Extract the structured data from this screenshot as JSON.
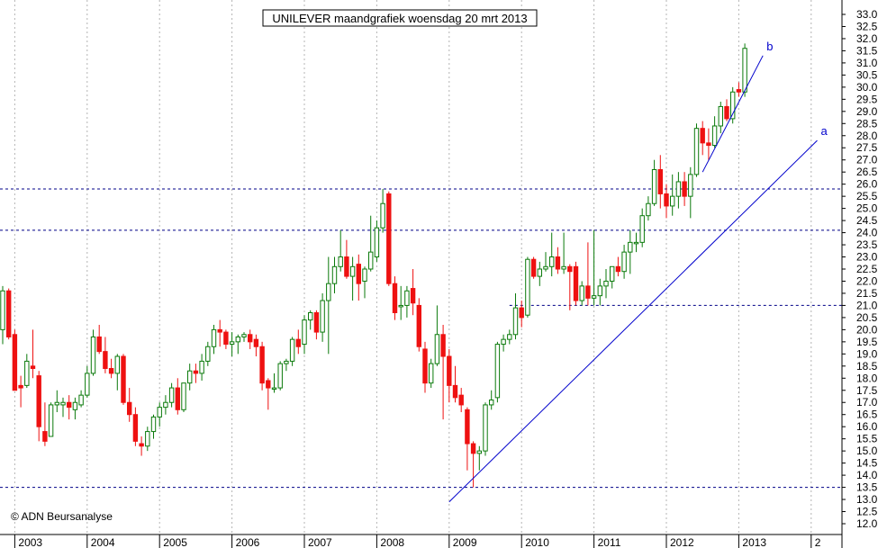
{
  "chart_data": {
    "type": "candlestick",
    "title": "UNILEVER maandgrafiek woensdag 20 mrt 2013",
    "copyright": "© ADN Beursanalyse",
    "ylim": [
      12.0,
      33.0
    ],
    "y_ticks": [
      12.0,
      12.5,
      13.0,
      13.5,
      14.0,
      14.5,
      15.0,
      15.5,
      16.0,
      16.5,
      17.0,
      17.5,
      18.0,
      18.5,
      19.0,
      19.5,
      20.0,
      20.5,
      21.0,
      21.5,
      22.0,
      22.5,
      23.0,
      23.5,
      24.0,
      24.5,
      25.0,
      25.5,
      26.0,
      26.5,
      27.0,
      27.5,
      28.0,
      28.5,
      29.0,
      29.5,
      30.0,
      30.5,
      31.0,
      31.5,
      32.0,
      32.5,
      33.0
    ],
    "x_labels": [
      "2003",
      "2004",
      "2005",
      "2006",
      "2007",
      "2008",
      "2009",
      "2010",
      "2011",
      "2012",
      "2013",
      "2"
    ],
    "grid": true,
    "up_color": "#0b7a0b",
    "down_color": "#ee1111",
    "trendline_color": "#0000cc",
    "horizontal_levels": [
      25.8,
      24.1,
      21.0,
      13.5
    ],
    "trendlines": [
      {
        "label": "a",
        "from": [
          "2009-01",
          12.9
        ],
        "to": [
          "2014-02",
          27.8
        ]
      },
      {
        "label": "b",
        "from": [
          "2012-07",
          26.5
        ],
        "to": [
          "2013-05",
          31.3
        ]
      }
    ],
    "candles": [
      {
        "o": 20.0,
        "h": 21.8,
        "l": 19.4,
        "c": 21.6
      },
      {
        "o": 21.6,
        "h": 21.7,
        "l": 19.6,
        "c": 19.7
      },
      {
        "o": 19.8,
        "h": 20.0,
        "l": 17.6,
        "c": 17.5
      },
      {
        "o": 17.7,
        "h": 18.1,
        "l": 16.8,
        "c": 17.6
      },
      {
        "o": 17.7,
        "h": 19.0,
        "l": 17.6,
        "c": 18.7
      },
      {
        "o": 18.5,
        "h": 20.0,
        "l": 18.0,
        "c": 18.4
      },
      {
        "o": 18.1,
        "h": 18.3,
        "l": 15.4,
        "c": 16.0
      },
      {
        "o": 15.8,
        "h": 17.0,
        "l": 15.2,
        "c": 15.4
      },
      {
        "o": 15.6,
        "h": 17.0,
        "l": 15.6,
        "c": 16.9
      },
      {
        "o": 16.9,
        "h": 17.5,
        "l": 16.6,
        "c": 17.0
      },
      {
        "o": 16.9,
        "h": 17.2,
        "l": 16.4,
        "c": 17.0
      },
      {
        "o": 17.0,
        "h": 17.3,
        "l": 16.3,
        "c": 16.8
      },
      {
        "o": 16.7,
        "h": 17.2,
        "l": 16.3,
        "c": 17.0
      },
      {
        "o": 16.9,
        "h": 17.5,
        "l": 16.8,
        "c": 17.3
      },
      {
        "o": 17.3,
        "h": 18.5,
        "l": 17.2,
        "c": 18.2
      },
      {
        "o": 18.2,
        "h": 20.0,
        "l": 18.1,
        "c": 19.7
      },
      {
        "o": 19.7,
        "h": 20.2,
        "l": 19.0,
        "c": 19.1
      },
      {
        "o": 19.1,
        "h": 19.7,
        "l": 18.2,
        "c": 18.4
      },
      {
        "o": 18.4,
        "h": 18.8,
        "l": 18.0,
        "c": 18.2
      },
      {
        "o": 18.2,
        "h": 19.0,
        "l": 17.5,
        "c": 18.9
      },
      {
        "o": 18.9,
        "h": 19.0,
        "l": 16.9,
        "c": 17.0
      },
      {
        "o": 17.0,
        "h": 17.6,
        "l": 16.2,
        "c": 16.5
      },
      {
        "o": 16.5,
        "h": 16.8,
        "l": 15.2,
        "c": 15.4
      },
      {
        "o": 15.3,
        "h": 15.6,
        "l": 14.8,
        "c": 15.2
      },
      {
        "o": 15.2,
        "h": 16.0,
        "l": 15.0,
        "c": 15.8
      },
      {
        "o": 15.8,
        "h": 16.5,
        "l": 15.5,
        "c": 16.4
      },
      {
        "o": 16.4,
        "h": 17.0,
        "l": 16.0,
        "c": 16.8
      },
      {
        "o": 16.8,
        "h": 17.3,
        "l": 16.5,
        "c": 17.0
      },
      {
        "o": 17.0,
        "h": 17.8,
        "l": 16.8,
        "c": 17.6
      },
      {
        "o": 17.6,
        "h": 18.0,
        "l": 16.5,
        "c": 16.7
      },
      {
        "o": 16.7,
        "h": 17.8,
        "l": 16.6,
        "c": 17.8
      },
      {
        "o": 17.8,
        "h": 18.6,
        "l": 17.5,
        "c": 18.3
      },
      {
        "o": 18.3,
        "h": 18.6,
        "l": 17.8,
        "c": 18.2
      },
      {
        "o": 18.2,
        "h": 19.0,
        "l": 17.9,
        "c": 18.7
      },
      {
        "o": 18.7,
        "h": 19.5,
        "l": 18.5,
        "c": 19.3
      },
      {
        "o": 19.3,
        "h": 20.2,
        "l": 19.0,
        "c": 20.0
      },
      {
        "o": 20.0,
        "h": 20.4,
        "l": 19.3,
        "c": 19.9
      },
      {
        "o": 19.9,
        "h": 20.0,
        "l": 19.2,
        "c": 19.4
      },
      {
        "o": 19.4,
        "h": 19.9,
        "l": 18.9,
        "c": 19.5
      },
      {
        "o": 19.5,
        "h": 19.8,
        "l": 19.0,
        "c": 19.7
      },
      {
        "o": 19.7,
        "h": 19.9,
        "l": 19.5,
        "c": 19.8
      },
      {
        "o": 19.8,
        "h": 20.0,
        "l": 19.2,
        "c": 19.5
      },
      {
        "o": 19.6,
        "h": 19.8,
        "l": 18.9,
        "c": 19.3
      },
      {
        "o": 19.3,
        "h": 19.5,
        "l": 17.5,
        "c": 17.8
      },
      {
        "o": 17.9,
        "h": 18.0,
        "l": 16.7,
        "c": 17.6
      },
      {
        "o": 17.6,
        "h": 18.2,
        "l": 17.4,
        "c": 17.6
      },
      {
        "o": 17.6,
        "h": 18.7,
        "l": 17.5,
        "c": 18.6
      },
      {
        "o": 18.6,
        "h": 18.8,
        "l": 18.3,
        "c": 18.7
      },
      {
        "o": 18.7,
        "h": 19.7,
        "l": 18.5,
        "c": 19.6
      },
      {
        "o": 19.6,
        "h": 20.0,
        "l": 19.0,
        "c": 19.3
      },
      {
        "o": 19.4,
        "h": 20.6,
        "l": 19.0,
        "c": 20.4
      },
      {
        "o": 20.4,
        "h": 20.8,
        "l": 20.0,
        "c": 20.7
      },
      {
        "o": 20.7,
        "h": 20.8,
        "l": 19.6,
        "c": 19.9
      },
      {
        "o": 19.9,
        "h": 21.5,
        "l": 19.5,
        "c": 21.2
      },
      {
        "o": 21.2,
        "h": 23.0,
        "l": 19.0,
        "c": 21.9
      },
      {
        "o": 21.9,
        "h": 23.0,
        "l": 21.5,
        "c": 22.6
      },
      {
        "o": 22.6,
        "h": 24.1,
        "l": 22.4,
        "c": 23.0
      },
      {
        "o": 23.0,
        "h": 23.7,
        "l": 22.1,
        "c": 22.2
      },
      {
        "o": 22.2,
        "h": 23.0,
        "l": 21.2,
        "c": 22.6
      },
      {
        "o": 22.7,
        "h": 23.1,
        "l": 21.2,
        "c": 21.9
      },
      {
        "o": 22.0,
        "h": 22.6,
        "l": 21.3,
        "c": 22.5
      },
      {
        "o": 22.5,
        "h": 24.7,
        "l": 22.4,
        "c": 23.2
      },
      {
        "o": 23.0,
        "h": 24.5,
        "l": 22.8,
        "c": 24.2
      },
      {
        "o": 24.2,
        "h": 25.8,
        "l": 24.0,
        "c": 25.2
      },
      {
        "o": 25.6,
        "h": 25.7,
        "l": 21.8,
        "c": 21.9
      },
      {
        "o": 21.9,
        "h": 22.2,
        "l": 20.4,
        "c": 20.7
      },
      {
        "o": 21.0,
        "h": 21.8,
        "l": 20.4,
        "c": 21.0
      },
      {
        "o": 21.0,
        "h": 21.8,
        "l": 20.5,
        "c": 21.6
      },
      {
        "o": 21.7,
        "h": 22.5,
        "l": 20.6,
        "c": 21.1
      },
      {
        "o": 21.0,
        "h": 21.3,
        "l": 19.1,
        "c": 19.3
      },
      {
        "o": 19.2,
        "h": 19.5,
        "l": 17.4,
        "c": 17.8
      },
      {
        "o": 17.8,
        "h": 18.8,
        "l": 17.6,
        "c": 18.6
      },
      {
        "o": 18.6,
        "h": 21.0,
        "l": 18.5,
        "c": 19.8
      },
      {
        "o": 19.8,
        "h": 20.2,
        "l": 16.3,
        "c": 18.9
      },
      {
        "o": 18.9,
        "h": 19.2,
        "l": 17.0,
        "c": 17.7
      },
      {
        "o": 17.7,
        "h": 18.5,
        "l": 17.0,
        "c": 17.2
      },
      {
        "o": 17.3,
        "h": 17.6,
        "l": 16.6,
        "c": 16.9
      },
      {
        "o": 16.7,
        "h": 16.8,
        "l": 14.2,
        "c": 15.3
      },
      {
        "o": 15.3,
        "h": 15.4,
        "l": 13.5,
        "c": 14.9
      },
      {
        "o": 14.9,
        "h": 15.2,
        "l": 14.2,
        "c": 15.0
      },
      {
        "o": 15.0,
        "h": 17.0,
        "l": 14.8,
        "c": 16.9
      },
      {
        "o": 16.9,
        "h": 17.5,
        "l": 16.7,
        "c": 17.1
      },
      {
        "o": 17.2,
        "h": 19.5,
        "l": 17.0,
        "c": 19.4
      },
      {
        "o": 19.4,
        "h": 19.8,
        "l": 19.1,
        "c": 19.6
      },
      {
        "o": 19.6,
        "h": 20.0,
        "l": 19.4,
        "c": 19.8
      },
      {
        "o": 19.8,
        "h": 21.5,
        "l": 19.6,
        "c": 20.9
      },
      {
        "o": 20.9,
        "h": 21.2,
        "l": 20.1,
        "c": 20.5
      },
      {
        "o": 20.6,
        "h": 23.0,
        "l": 20.5,
        "c": 22.9
      },
      {
        "o": 22.9,
        "h": 23.0,
        "l": 22.1,
        "c": 22.2
      },
      {
        "o": 22.2,
        "h": 22.8,
        "l": 21.8,
        "c": 22.5
      },
      {
        "o": 22.5,
        "h": 23.2,
        "l": 22.4,
        "c": 22.6
      },
      {
        "o": 22.6,
        "h": 24.0,
        "l": 22.2,
        "c": 23.0
      },
      {
        "o": 23.0,
        "h": 23.4,
        "l": 22.3,
        "c": 22.5
      },
      {
        "o": 22.5,
        "h": 24.0,
        "l": 22.3,
        "c": 22.6
      },
      {
        "o": 22.6,
        "h": 22.7,
        "l": 20.8,
        "c": 22.4
      },
      {
        "o": 22.6,
        "h": 22.8,
        "l": 21.0,
        "c": 21.2
      },
      {
        "o": 21.2,
        "h": 22.0,
        "l": 21.0,
        "c": 21.8
      },
      {
        "o": 21.8,
        "h": 23.6,
        "l": 21.0,
        "c": 21.3
      },
      {
        "o": 21.3,
        "h": 24.1,
        "l": 21.0,
        "c": 21.4
      },
      {
        "o": 21.4,
        "h": 22.1,
        "l": 21.0,
        "c": 21.8
      },
      {
        "o": 21.8,
        "h": 22.5,
        "l": 21.3,
        "c": 22.0
      },
      {
        "o": 22.0,
        "h": 22.6,
        "l": 21.7,
        "c": 22.6
      },
      {
        "o": 22.6,
        "h": 23.0,
        "l": 22.2,
        "c": 22.4
      },
      {
        "o": 22.4,
        "h": 23.5,
        "l": 22.1,
        "c": 23.2
      },
      {
        "o": 23.2,
        "h": 24.1,
        "l": 22.3,
        "c": 23.6
      },
      {
        "o": 23.6,
        "h": 24.0,
        "l": 23.2,
        "c": 23.6
      },
      {
        "o": 23.6,
        "h": 25.0,
        "l": 23.4,
        "c": 24.7
      },
      {
        "o": 24.7,
        "h": 25.5,
        "l": 24.5,
        "c": 25.2
      },
      {
        "o": 25.2,
        "h": 27.0,
        "l": 25.1,
        "c": 26.6
      },
      {
        "o": 26.6,
        "h": 27.2,
        "l": 25.0,
        "c": 25.6
      },
      {
        "o": 25.6,
        "h": 26.0,
        "l": 24.6,
        "c": 25.1
      },
      {
        "o": 25.1,
        "h": 26.4,
        "l": 24.7,
        "c": 25.5
      },
      {
        "o": 25.5,
        "h": 26.5,
        "l": 25.0,
        "c": 26.1
      },
      {
        "o": 26.1,
        "h": 26.5,
        "l": 25.1,
        "c": 25.5
      },
      {
        "o": 25.5,
        "h": 26.7,
        "l": 24.6,
        "c": 26.4
      },
      {
        "o": 26.4,
        "h": 28.5,
        "l": 26.3,
        "c": 28.3
      },
      {
        "o": 28.3,
        "h": 28.6,
        "l": 27.2,
        "c": 27.7
      },
      {
        "o": 27.7,
        "h": 28.3,
        "l": 27.0,
        "c": 27.6
      },
      {
        "o": 27.6,
        "h": 28.8,
        "l": 27.5,
        "c": 28.4
      },
      {
        "o": 28.4,
        "h": 29.4,
        "l": 28.1,
        "c": 29.2
      },
      {
        "o": 29.2,
        "h": 29.5,
        "l": 28.6,
        "c": 28.7
      },
      {
        "o": 28.7,
        "h": 30.0,
        "l": 28.5,
        "c": 29.8
      },
      {
        "o": 29.9,
        "h": 30.2,
        "l": 29.6,
        "c": 29.8
      },
      {
        "o": 29.8,
        "h": 31.8,
        "l": 29.6,
        "c": 31.6
      }
    ]
  }
}
